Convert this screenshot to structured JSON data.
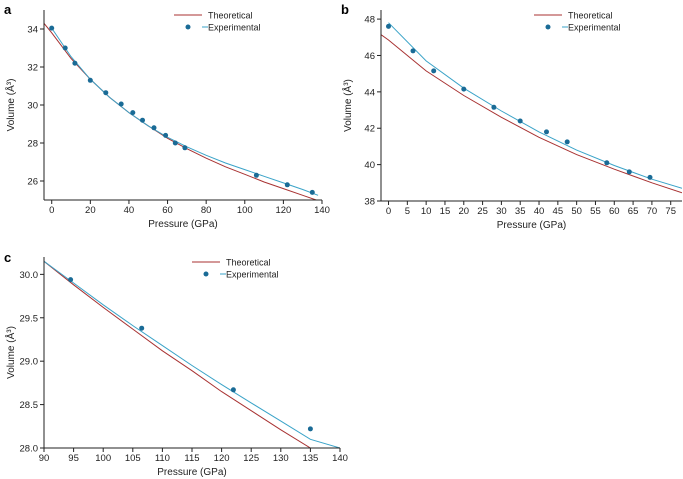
{
  "colors": {
    "theoretical": "#a83232",
    "experimental_line": "#3aa3c8",
    "experimental_points": "#1a6b96",
    "axis": "#222222"
  },
  "chart_data": [
    {
      "panel": "a",
      "type": "scatter",
      "xlabel": "Pressure (GPa)",
      "ylabel": "Volume (Å³)",
      "xlim": [
        -4,
        140
      ],
      "ylim": [
        25,
        35
      ],
      "xticks": [
        0,
        20,
        40,
        60,
        80,
        100,
        120,
        140
      ],
      "yticks": [
        26,
        28,
        30,
        32,
        34
      ],
      "grid": false,
      "legend_position": "top-right",
      "legend": [
        "Theoretical",
        "Experimental"
      ],
      "series": [
        {
          "name": "Theoretical",
          "kind": "line",
          "x": [
            -4,
            0,
            10,
            20,
            30,
            40,
            50,
            60,
            70,
            80,
            90,
            100,
            110,
            120,
            130,
            137
          ],
          "y": [
            34.3,
            33.8,
            32.45,
            31.35,
            30.4,
            29.6,
            28.9,
            28.25,
            27.7,
            27.2,
            26.75,
            26.35,
            25.95,
            25.6,
            25.25,
            25.0
          ]
        },
        {
          "name": "Experimental",
          "kind": "line",
          "x": [
            0,
            10,
            20,
            30,
            40,
            50,
            60,
            70,
            80,
            90,
            100,
            110,
            120,
            130,
            138
          ],
          "y": [
            34.05,
            32.55,
            31.35,
            30.4,
            29.6,
            28.9,
            28.3,
            27.8,
            27.35,
            26.95,
            26.6,
            26.25,
            25.9,
            25.55,
            25.25
          ]
        },
        {
          "name": "Experimental",
          "kind": "points",
          "x": [
            0,
            7,
            12,
            20,
            28,
            36,
            42,
            47,
            53,
            59,
            64,
            69,
            106,
            122,
            135
          ],
          "y": [
            34.05,
            33.0,
            32.2,
            31.3,
            30.65,
            30.05,
            29.6,
            29.2,
            28.8,
            28.4,
            28.0,
            27.75,
            26.3,
            25.8,
            25.4
          ]
        }
      ]
    },
    {
      "panel": "b",
      "type": "scatter",
      "xlabel": "Pressure (GPa)",
      "ylabel": "Volume (Å³)",
      "xlim": [
        -2,
        78
      ],
      "ylim": [
        38,
        48.5
      ],
      "xticks": [
        0,
        5,
        10,
        15,
        20,
        25,
        30,
        35,
        40,
        45,
        50,
        55,
        60,
        65,
        70,
        75
      ],
      "yticks": [
        38,
        40,
        42,
        44,
        46,
        48
      ],
      "grid": false,
      "legend_position": "top-right",
      "legend": [
        "Theoretical",
        "Experimental"
      ],
      "series": [
        {
          "name": "Theoretical",
          "kind": "line",
          "x": [
            -2,
            0,
            10,
            20,
            30,
            40,
            50,
            60,
            70,
            78
          ],
          "y": [
            47.15,
            46.85,
            45.15,
            43.8,
            42.6,
            41.5,
            40.55,
            39.75,
            39.0,
            38.45
          ]
        },
        {
          "name": "Experimental",
          "kind": "line",
          "x": [
            0,
            10,
            20,
            30,
            40,
            50,
            60,
            70,
            78
          ],
          "y": [
            47.8,
            45.7,
            44.2,
            42.95,
            41.8,
            40.8,
            39.95,
            39.2,
            38.7
          ]
        },
        {
          "name": "Experimental",
          "kind": "points",
          "x": [
            0,
            6.5,
            12,
            20,
            28,
            35,
            42,
            47.5,
            58,
            64,
            69.5
          ],
          "y": [
            47.6,
            46.25,
            45.15,
            44.15,
            43.15,
            42.4,
            41.8,
            41.25,
            40.1,
            39.6,
            39.3
          ]
        }
      ]
    },
    {
      "panel": "c",
      "type": "scatter",
      "xlabel": "Pressure (GPa)",
      "ylabel": "Volume (Å³)",
      "xlim": [
        90,
        140
      ],
      "ylim": [
        28.0,
        30.2
      ],
      "xticks": [
        90,
        95,
        100,
        105,
        110,
        115,
        120,
        125,
        130,
        135,
        140
      ],
      "yticks": [
        28.0,
        28.5,
        29.0,
        29.5,
        30.0
      ],
      "grid": false,
      "legend_position": "top-right",
      "legend": [
        "Theoretical",
        "Experimental"
      ],
      "series": [
        {
          "name": "Theoretical",
          "kind": "line",
          "x": [
            90,
            95,
            100,
            105,
            110,
            115,
            120,
            125,
            130,
            135,
            137.5
          ],
          "y": [
            30.15,
            29.88,
            29.62,
            29.37,
            29.12,
            28.89,
            28.65,
            28.43,
            28.21,
            28.0,
            27.9
          ]
        },
        {
          "name": "Experimental",
          "kind": "line",
          "x": [
            90,
            95,
            100,
            105,
            110,
            115,
            120,
            125,
            130,
            135,
            140
          ],
          "y": [
            30.15,
            29.9,
            29.65,
            29.41,
            29.18,
            28.95,
            28.73,
            28.52,
            28.31,
            28.1,
            28.0
          ]
        },
        {
          "name": "Experimental",
          "kind": "points",
          "x": [
            94.5,
            106.5,
            122,
            135
          ],
          "y": [
            29.94,
            29.38,
            28.67,
            28.22
          ]
        }
      ]
    }
  ]
}
